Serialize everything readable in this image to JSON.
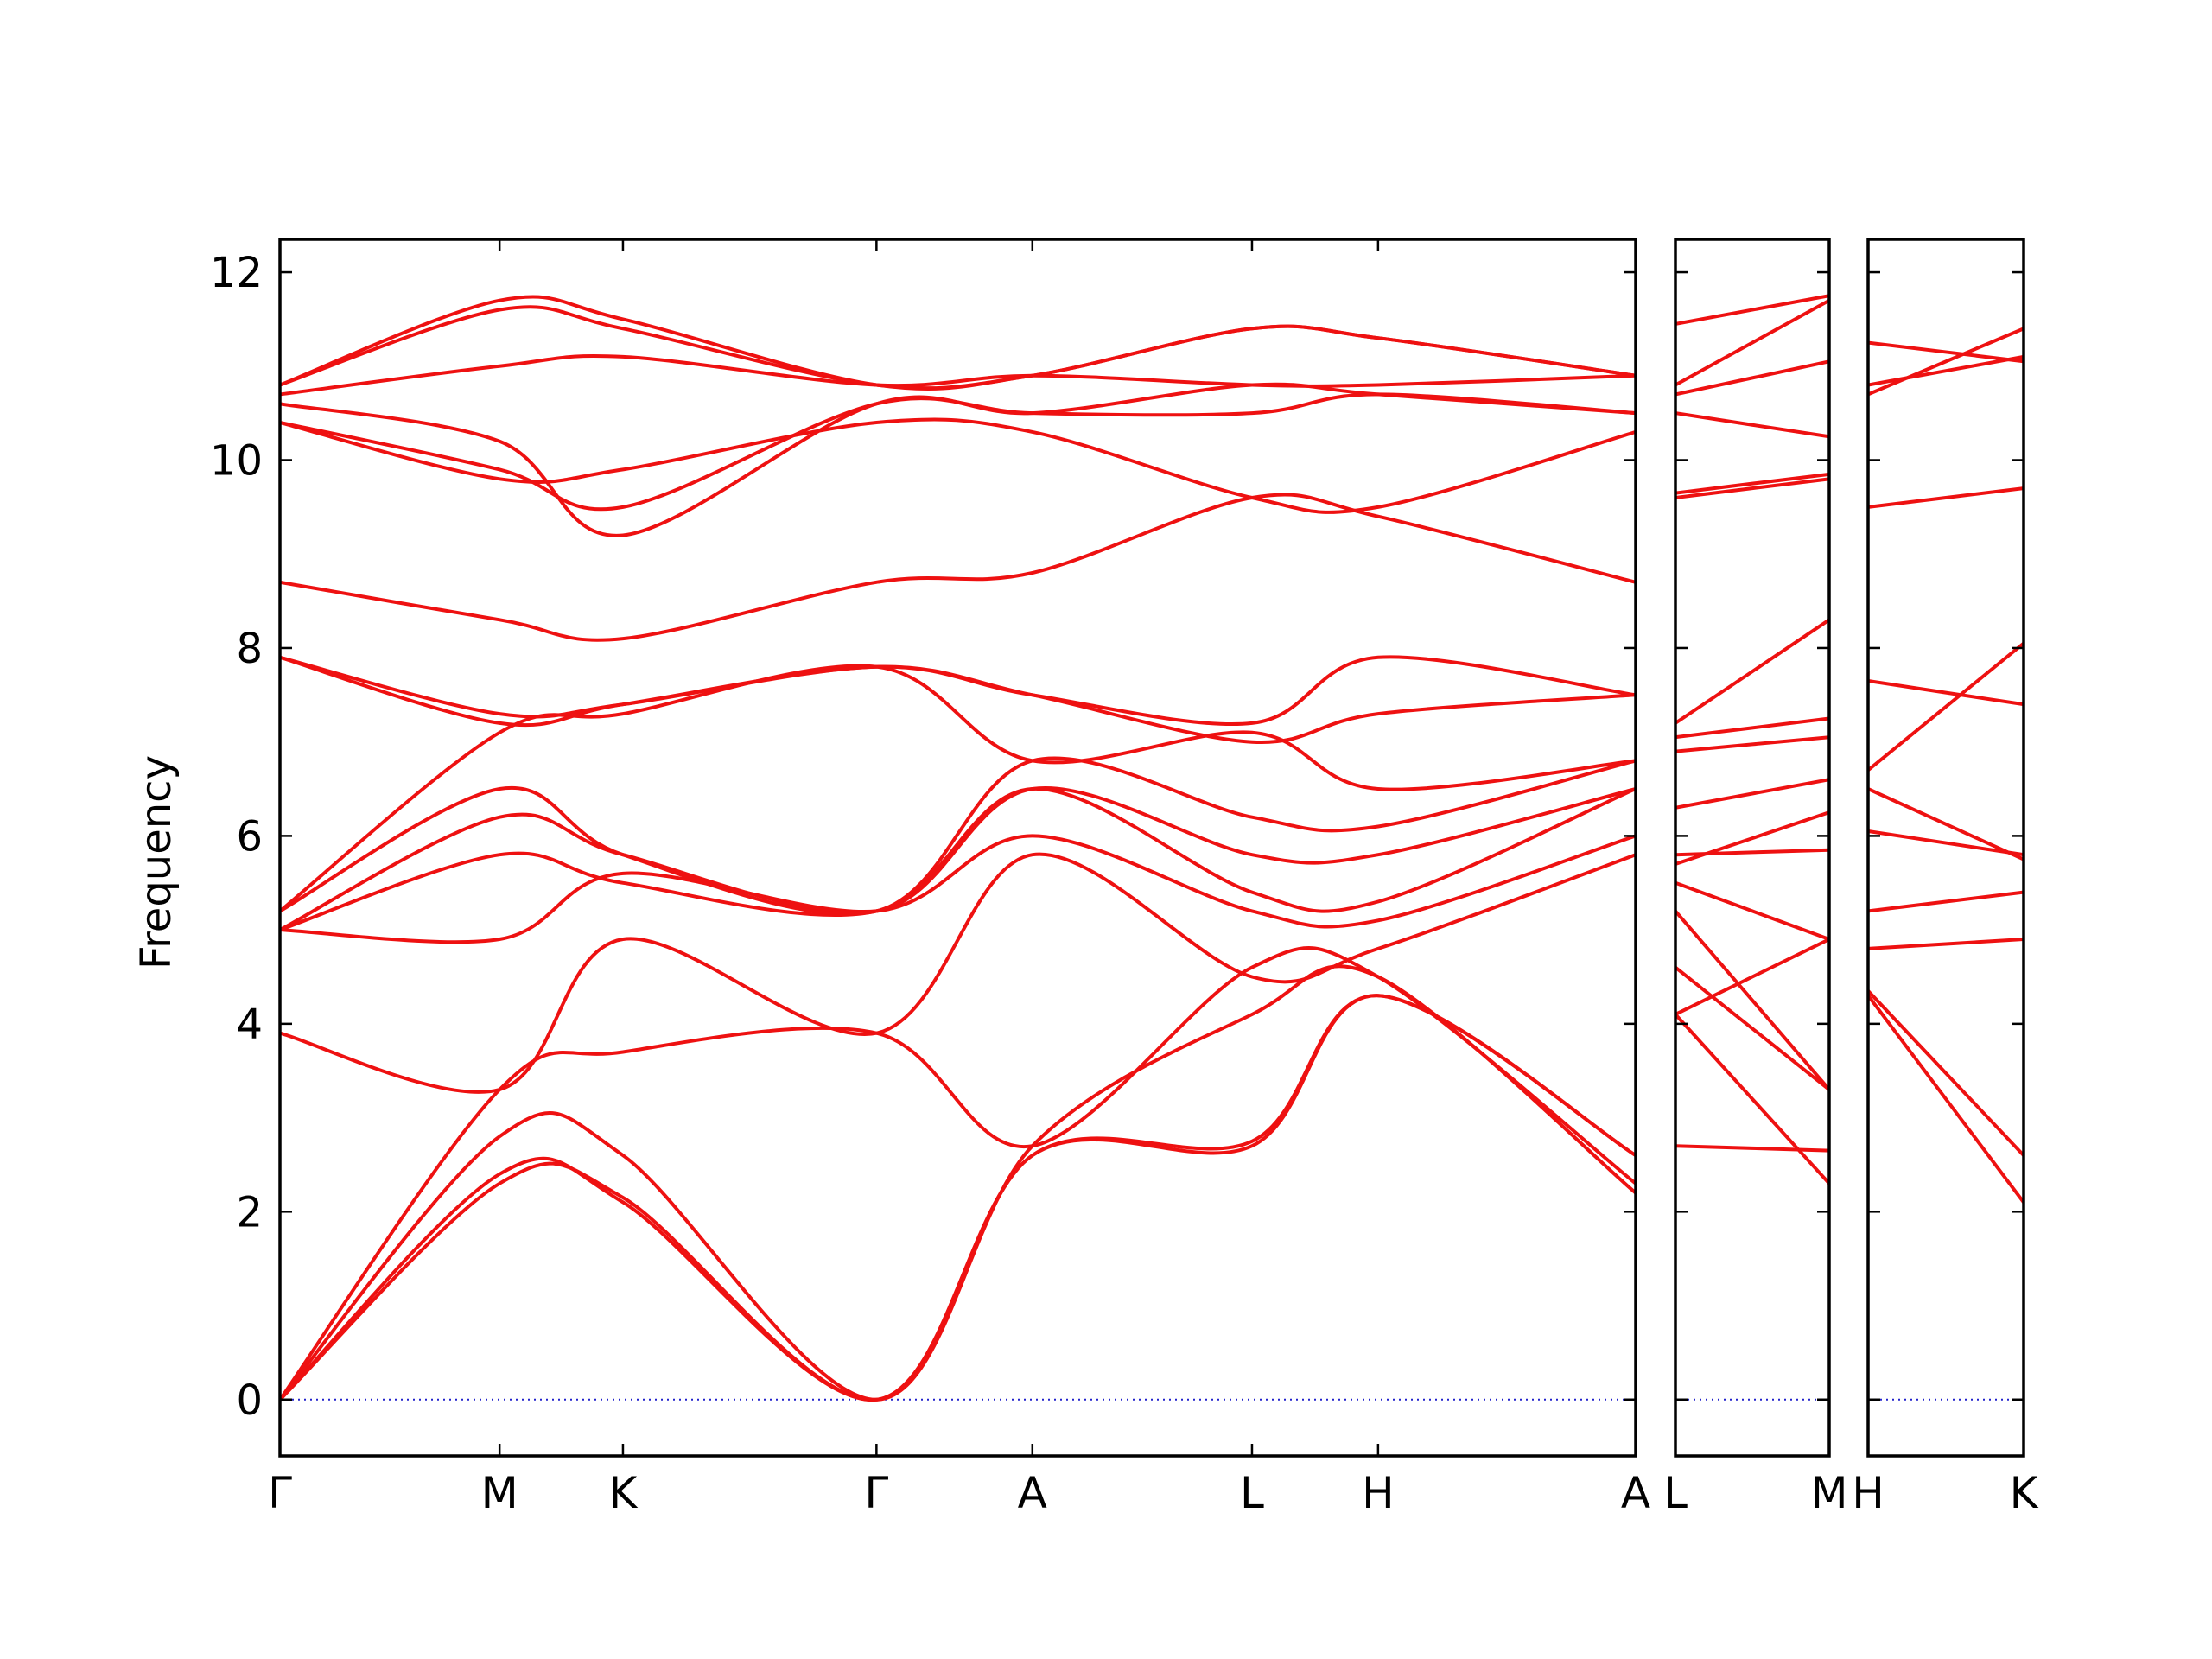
{
  "chart_data": {
    "type": "line",
    "title": "",
    "ylabel": "Frequency",
    "ylim": [
      -0.6,
      12.35
    ],
    "yticks": [
      "0",
      "2",
      "4",
      "6",
      "8",
      "10",
      "12"
    ],
    "ytick_values": [
      0,
      2,
      4,
      6,
      8,
      10,
      12
    ],
    "band_color": "#ee1111",
    "zero_line_color": "#2222cc",
    "panels": [
      {
        "xlabels": [
          "Γ",
          "M",
          "K",
          "Γ",
          "A",
          "L",
          "H",
          "A"
        ],
        "x": [
          0,
          0.162,
          0.253,
          0.44,
          0.555,
          0.717,
          0.81,
          1.0
        ],
        "series": [
          {
            "values": [
              0,
              2.4,
              2.1,
              0,
              2.6,
              2.7,
              4.3,
              2.6
            ]
          },
          {
            "values": [
              0,
              2.3,
              2.15,
              0,
              2.6,
              2.75,
              4.3,
              2.6
            ]
          },
          {
            "values": [
              0,
              2.8,
              2.6,
              0,
              2.7,
              4.1,
              4.5,
              2.2
            ]
          },
          {
            "values": [
              0,
              3.3,
              3.7,
              3.9,
              2.7,
              4.6,
              4.5,
              2.3
            ]
          },
          {
            "values": [
              3.9,
              3.3,
              4.9,
              3.9,
              5.8,
              4.5,
              4.8,
              5.8
            ]
          },
          {
            "values": [
              5.0,
              4.9,
              5.6,
              5.2,
              6.0,
              5.2,
              5.1,
              6.0
            ]
          },
          {
            "values": [
              5.0,
              5.8,
              5.5,
              5.2,
              6.5,
              5.4,
              5.3,
              6.5
            ]
          },
          {
            "values": [
              5.0,
              6.2,
              5.8,
              5.2,
              6.5,
              5.8,
              5.8,
              6.5
            ]
          },
          {
            "values": [
              5.2,
              6.5,
              5.8,
              5.2,
              6.8,
              6.2,
              6.1,
              6.8
            ]
          },
          {
            "values": [
              5.2,
              7.1,
              7.3,
              7.8,
              6.8,
              7.1,
              6.5,
              6.8
            ]
          },
          {
            "values": [
              7.9,
              7.2,
              7.4,
              7.8,
              7.5,
              7.2,
              7.9,
              7.5
            ]
          },
          {
            "values": [
              7.9,
              7.3,
              7.4,
              7.8,
              7.5,
              7.0,
              7.3,
              7.5
            ]
          },
          {
            "values": [
              8.7,
              8.3,
              8.1,
              8.7,
              8.8,
              9.6,
              9.4,
              8.7
            ]
          },
          {
            "values": [
              10.4,
              9.8,
              9.9,
              10.4,
              10.3,
              9.6,
              9.5,
              10.3
            ]
          },
          {
            "values": [
              10.4,
              9.9,
              9.5,
              10.6,
              10.5,
              10.5,
              10.7,
              10.5
            ]
          },
          {
            "values": [
              10.6,
              10.2,
              9.2,
              10.6,
              10.5,
              10.8,
              10.7,
              10.5
            ]
          },
          {
            "values": [
              10.7,
              11.0,
              11.1,
              10.8,
              10.9,
              10.8,
              10.8,
              10.9
            ]
          },
          {
            "values": [
              10.8,
              11.6,
              11.4,
              10.8,
              10.9,
              11.4,
              11.3,
              10.9
            ]
          },
          {
            "values": [
              10.8,
              11.7,
              11.5,
              10.8,
              10.9,
              11.4,
              11.3,
              10.9
            ]
          }
        ]
      },
      {
        "xlabels": [
          "L",
          "M"
        ],
        "x": [
          0,
          1
        ],
        "series": [
          {
            "values": [
              2.7,
              2.65
            ]
          },
          {
            "values": [
              4.1,
              2.3
            ]
          },
          {
            "values": [
              4.6,
              3.3
            ]
          },
          {
            "values": [
              5.2,
              3.3
            ]
          },
          {
            "values": [
              5.5,
              4.9
            ]
          },
          {
            "values": [
              4.1,
              4.9
            ]
          },
          {
            "values": [
              5.8,
              5.85
            ]
          },
          {
            "values": [
              5.7,
              6.25
            ]
          },
          {
            "values": [
              6.3,
              6.6
            ]
          },
          {
            "values": [
              6.9,
              7.05
            ]
          },
          {
            "values": [
              7.05,
              7.25
            ]
          },
          {
            "values": [
              7.2,
              8.3
            ]
          },
          {
            "values": [
              9.6,
              9.8
            ]
          },
          {
            "values": [
              9.65,
              9.85
            ]
          },
          {
            "values": [
              10.5,
              10.25
            ]
          },
          {
            "values": [
              10.7,
              11.05
            ]
          },
          {
            "values": [
              10.8,
              11.7
            ]
          },
          {
            "values": [
              11.45,
              11.75
            ]
          }
        ]
      },
      {
        "xlabels": [
          "H",
          "K"
        ],
        "x": [
          0,
          1
        ],
        "series": [
          {
            "values": [
              4.3,
              2.1
            ]
          },
          {
            "values": [
              4.35,
              2.6
            ]
          },
          {
            "values": [
              4.8,
              4.9
            ]
          },
          {
            "values": [
              5.2,
              5.4
            ]
          },
          {
            "values": [
              6.05,
              5.8
            ]
          },
          {
            "values": [
              6.5,
              5.75
            ]
          },
          {
            "values": [
              6.7,
              8.05
            ]
          },
          {
            "values": [
              7.65,
              7.4
            ]
          },
          {
            "values": [
              9.5,
              9.7
            ]
          },
          {
            "values": [
              10.7,
              11.4
            ]
          },
          {
            "values": [
              10.8,
              11.1
            ]
          },
          {
            "values": [
              11.25,
              11.05
            ]
          }
        ]
      }
    ]
  }
}
